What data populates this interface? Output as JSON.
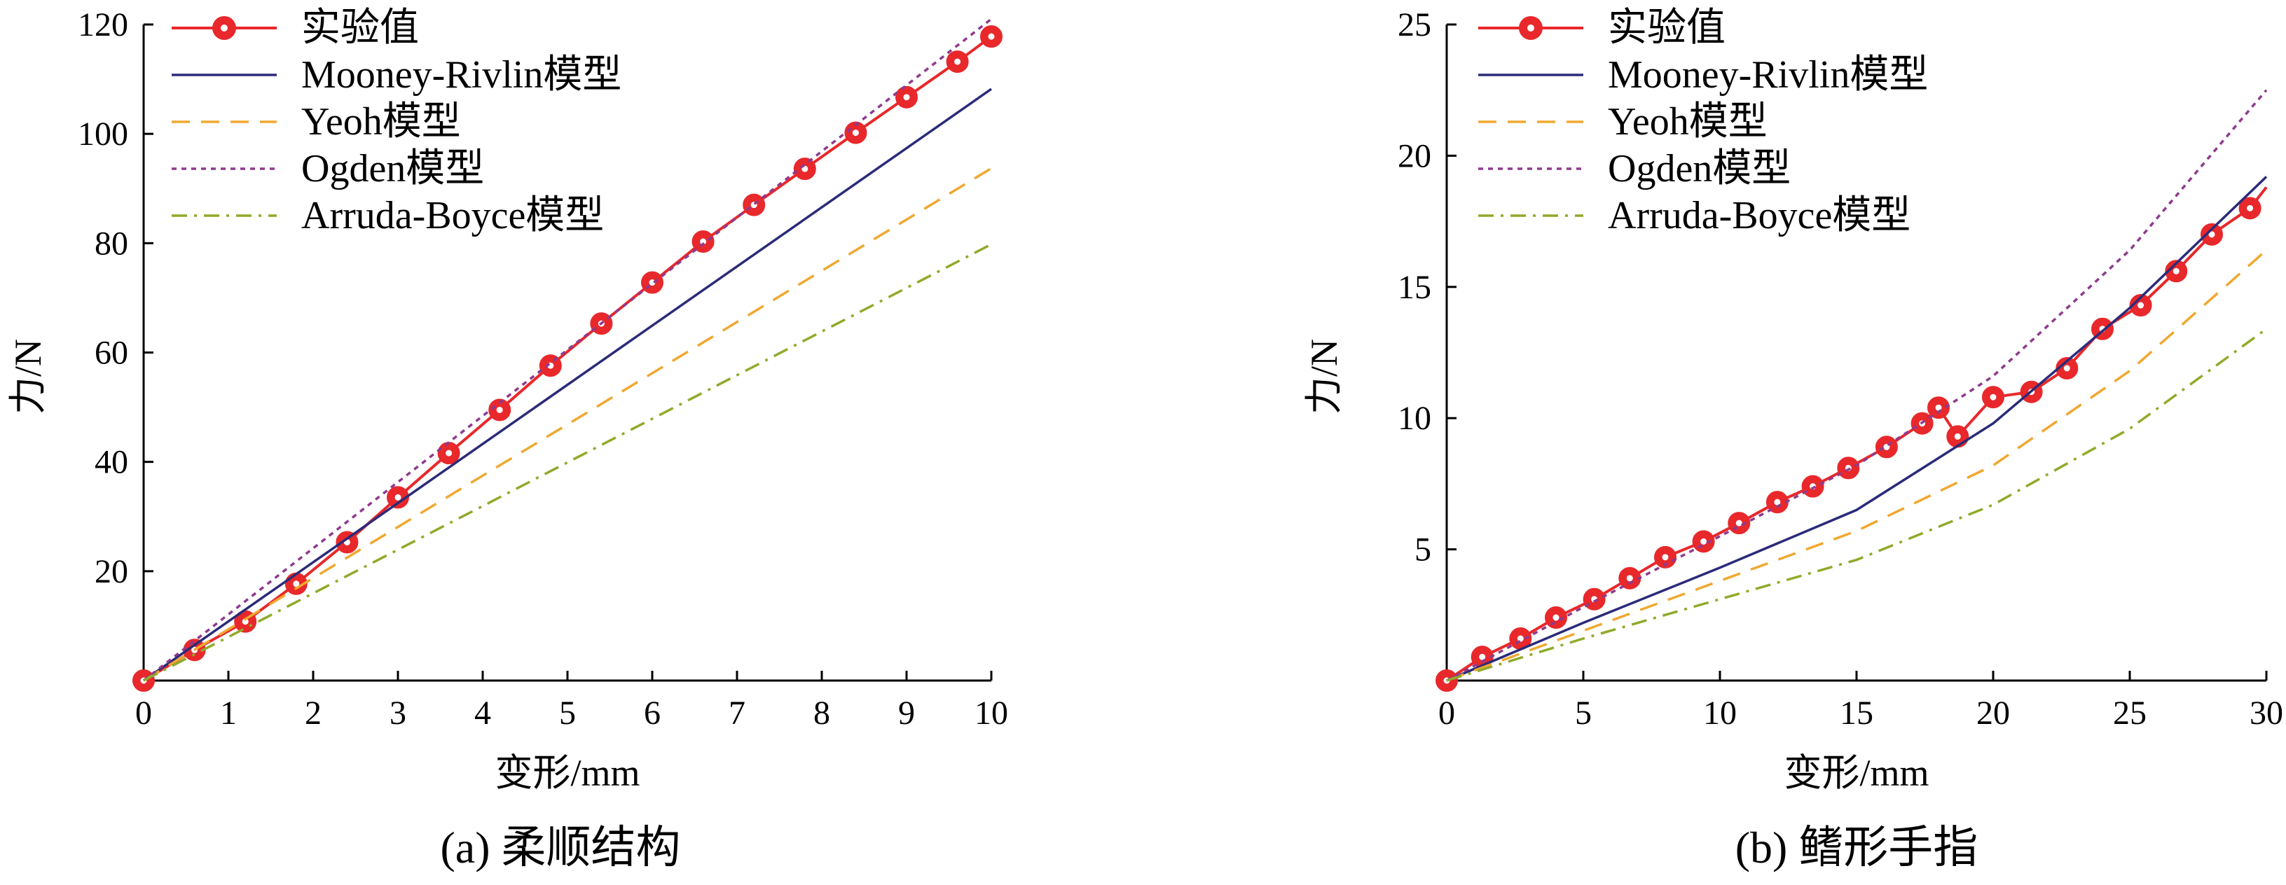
{
  "chart_data": [
    {
      "type": "line",
      "caption": "(a)  柔顺结构",
      "xlabel": "变形/mm",
      "ylabel": "力/N",
      "xlim": [
        0,
        10
      ],
      "ylim": [
        0,
        120
      ],
      "xticks": [
        0,
        1,
        2,
        3,
        4,
        5,
        6,
        7,
        8,
        9,
        10
      ],
      "yticks": [
        20,
        40,
        60,
        80,
        100,
        120
      ],
      "legend_position": "top-left",
      "series": [
        {
          "name": "实验值",
          "style": "line-marker",
          "color": "#e8282b",
          "x": [
            0,
            0.6,
            1.2,
            1.8,
            2.4,
            3.0,
            3.6,
            4.2,
            4.8,
            5.4,
            6.0,
            6.6,
            7.2,
            7.8,
            8.4,
            9.0,
            9.6,
            10.0
          ],
          "y": [
            0,
            5.6,
            10.8,
            17.7,
            25.3,
            33.5,
            41.6,
            49.5,
            57.6,
            65.3,
            72.8,
            80.3,
            87.0,
            93.6,
            100.2,
            106.7,
            113.2,
            117.8
          ]
        },
        {
          "name": "Mooney-Rivlin模型",
          "style": "solid",
          "color": "#2b2b7a",
          "x": [
            0,
            10
          ],
          "y": [
            0,
            108.2
          ]
        },
        {
          "name": "Yeoh模型",
          "style": "dashed",
          "color": "#f0a830",
          "x": [
            0,
            10
          ],
          "y": [
            0,
            93.7
          ]
        },
        {
          "name": "Ogden模型",
          "style": "dotted",
          "color": "#8e3a8e",
          "x": [
            0,
            10
          ],
          "y": [
            0,
            121.0
          ]
        },
        {
          "name": "Arruda-Boyce模型",
          "style": "dashdot",
          "color": "#8faa2a",
          "x": [
            0,
            10
          ],
          "y": [
            0,
            79.8
          ]
        }
      ]
    },
    {
      "type": "line",
      "caption": "(b)  鳍形手指",
      "xlabel": "变形/mm",
      "ylabel": "力/N",
      "xlim": [
        0,
        30
      ],
      "ylim": [
        0,
        25
      ],
      "xticks": [
        0,
        5,
        10,
        15,
        20,
        25,
        30
      ],
      "yticks": [
        5,
        10,
        15,
        20,
        25
      ],
      "legend_position": "top-left",
      "series": [
        {
          "name": "实验值",
          "style": "line-marker",
          "color": "#e8282b",
          "x": [
            0,
            1.3,
            2.7,
            4.0,
            5.4,
            6.7,
            8.0,
            9.4,
            10.7,
            12.1,
            13.4,
            14.7,
            16.1,
            17.4,
            18.0,
            18.7,
            20.0,
            21.4,
            22.7,
            24.0,
            25.4,
            26.7,
            28.0,
            29.4,
            30.0
          ],
          "y": [
            0,
            0.9,
            1.6,
            2.4,
            3.1,
            3.9,
            4.7,
            5.3,
            6.0,
            6.8,
            7.4,
            8.1,
            8.9,
            9.8,
            10.4,
            9.3,
            10.8,
            11.0,
            11.9,
            13.4,
            14.3,
            15.6,
            17.0,
            18.0,
            18.8
          ]
        },
        {
          "name": "Mooney-Rivlin模型",
          "style": "solid",
          "color": "#2b2b7a",
          "x": [
            0,
            5,
            10,
            15,
            20,
            25,
            30
          ],
          "y": [
            0,
            2.2,
            4.3,
            6.5,
            9.8,
            14.2,
            19.2
          ]
        },
        {
          "name": "Yeoh模型",
          "style": "dashed",
          "color": "#f0a830",
          "x": [
            0,
            5,
            10,
            15,
            20,
            25,
            30
          ],
          "y": [
            0,
            1.9,
            3.8,
            5.7,
            8.2,
            11.8,
            16.4
          ]
        },
        {
          "name": "Ogden模型",
          "style": "dotted",
          "color": "#8e3a8e",
          "x": [
            0,
            5,
            10,
            15,
            20,
            25,
            30
          ],
          "y": [
            0,
            2.8,
            5.5,
            8.2,
            11.6,
            16.4,
            22.5
          ]
        },
        {
          "name": "Arruda-Boyce模型",
          "style": "dashdot",
          "color": "#8faa2a",
          "x": [
            0,
            5,
            10,
            15,
            20,
            25,
            30
          ],
          "y": [
            0,
            1.6,
            3.1,
            4.6,
            6.7,
            9.6,
            13.4
          ]
        }
      ]
    }
  ]
}
